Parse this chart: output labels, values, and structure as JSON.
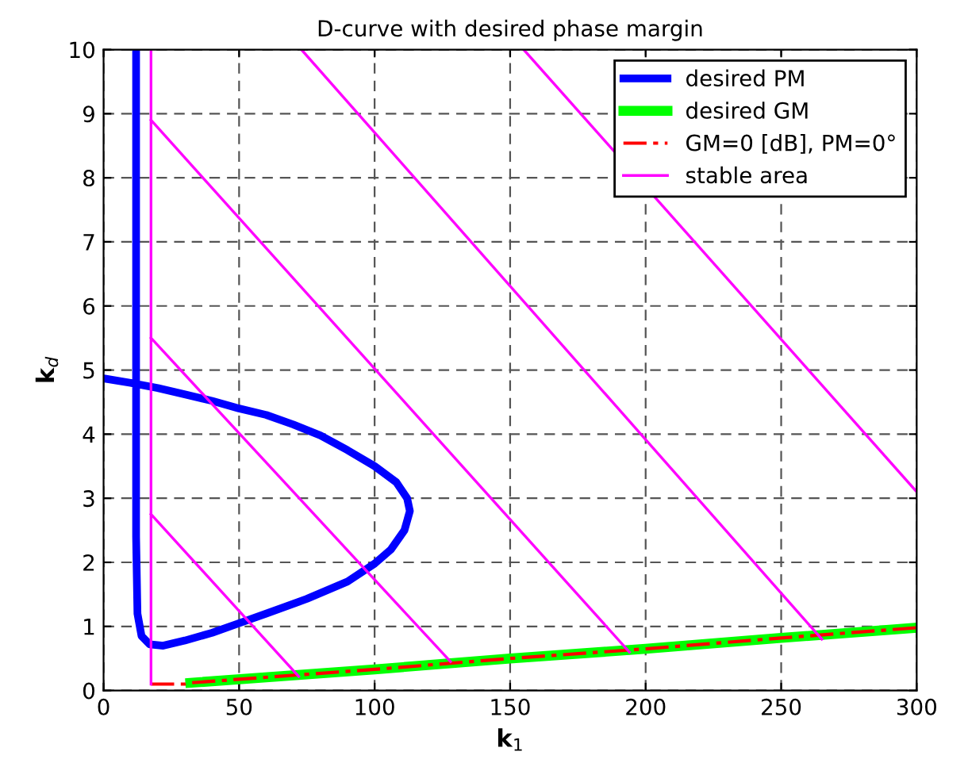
{
  "chart_data": {
    "type": "line",
    "title": "D-curve with desired phase margin",
    "xlabel": "k$_{1}$",
    "ylabel": "k$_{d}$",
    "xlim": [
      0,
      300
    ],
    "ylim": [
      0,
      10
    ],
    "xticks": [
      0,
      50,
      100,
      150,
      200,
      250,
      300
    ],
    "yticks": [
      0,
      1,
      2,
      3,
      4,
      5,
      6,
      7,
      8,
      9,
      10
    ],
    "grid": true,
    "legend": "top right",
    "marker": "none",
    "series": [
      {
        "name": "desired PM",
        "color": "#0000ff",
        "line_style": "solid",
        "x": [
          12,
          12,
          12,
          12.5,
          14,
          17,
          22,
          30,
          40,
          50,
          60,
          75,
          90,
          100,
          106,
          111,
          113,
          112,
          108,
          100,
          90,
          80,
          70,
          60,
          50,
          40,
          30,
          20,
          10,
          0
        ],
        "values": [
          10,
          5,
          2.4,
          1.2,
          0.85,
          0.72,
          0.7,
          0.78,
          0.9,
          1.05,
          1.2,
          1.43,
          1.7,
          1.98,
          2.2,
          2.5,
          2.8,
          3.0,
          3.25,
          3.5,
          3.75,
          3.98,
          4.15,
          4.3,
          4.4,
          4.52,
          4.62,
          4.72,
          4.8,
          4.87
        ]
      },
      {
        "name": "desired GM",
        "color": "#00ff00",
        "line_style": "solid",
        "x": [
          32,
          100,
          150,
          200,
          250,
          300
        ],
        "values": [
          0.12,
          0.33,
          0.5,
          0.65,
          0.82,
          0.98
        ]
      },
      {
        "name": "GM=0 [dB], PM=0°",
        "color": "#ff0000",
        "line_style": "dashed",
        "x": [
          17.5,
          30,
          32,
          100,
          150,
          200,
          250,
          300
        ],
        "values": [
          0.1,
          0.1,
          0.12,
          0.33,
          0.5,
          0.65,
          0.82,
          0.98
        ]
      },
      {
        "name": "stable area",
        "color": "#ff00ff",
        "line_style": "solid",
        "x": [
          17.5,
          17.5
        ],
        "values": [
          0.1,
          10
        ]
      },
      {
        "color": "#ff00ff",
        "line_style": "solid",
        "x": [
          17.5,
          72
        ],
        "values": [
          2.75,
          0.22
        ]
      },
      {
        "color": "#ff00ff",
        "line_style": "solid",
        "x": [
          17.5,
          128
        ],
        "values": [
          5.5,
          0.45
        ]
      },
      {
        "color": "#ff00ff",
        "line_style": "solid",
        "x": [
          17.5,
          194
        ],
        "values": [
          8.9,
          0.6
        ]
      },
      {
        "color": "#ff00ff",
        "line_style": "solid",
        "x": [
          73,
          265
        ],
        "values": [
          10,
          0.8
        ]
      },
      {
        "color": "#ff00ff",
        "line_style": "solid",
        "x": [
          155,
          300
        ],
        "values": [
          10,
          3.1
        ]
      }
    ]
  }
}
